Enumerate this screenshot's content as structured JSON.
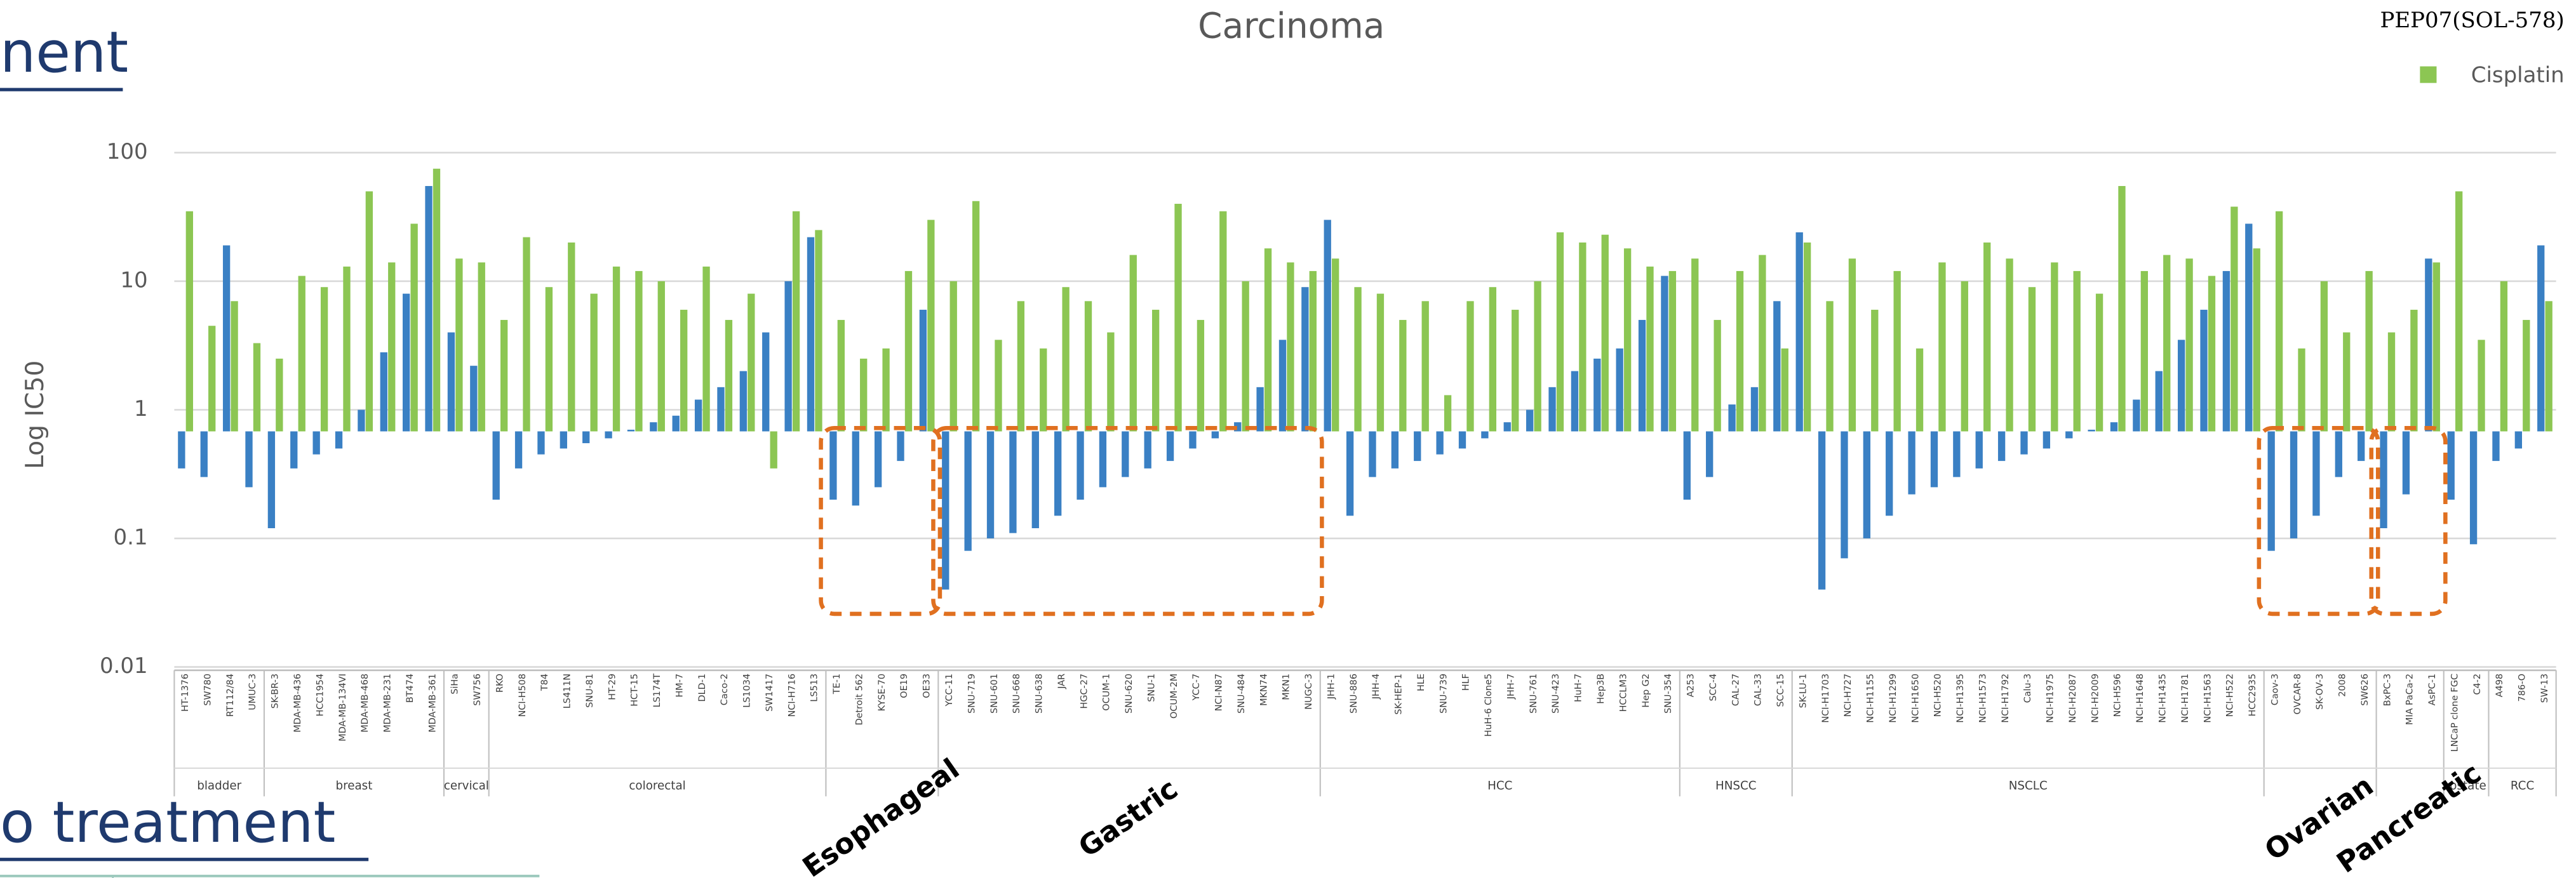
{
  "page_fragments": [
    "nent",
    "o treatment"
  ],
  "chart_data": {
    "type": "bar",
    "title": "Carcinoma",
    "y_label": "Log IC50",
    "log_y": true,
    "grid": true,
    "legend": "top-right",
    "ylim": [
      0.01,
      100
    ],
    "yticks": [
      100,
      10,
      1,
      0.1,
      0.01
    ],
    "categories": [
      "HT-1376",
      "SW780",
      "RT112/84",
      "UMUC-3",
      "SK-BR-3",
      "MDA-MB-436",
      "HCC1954",
      "MDA-MB-134VI",
      "MDA-MB-468",
      "MDA-MB-231",
      "BT474",
      "MDA-MB-361",
      "SiHa",
      "SW756",
      "RKO",
      "NCI-H508",
      "T84",
      "LS411N",
      "SNU-81",
      "HT-29",
      "HCT-15",
      "LS174T",
      "HM-7",
      "DLD-1",
      "Caco-2",
      "LS1034",
      "SW1417",
      "NCI-H716",
      "LS513",
      "TE-1",
      "Detroit 562",
      "KYSE-70",
      "OE19",
      "OE33",
      "YCC-11",
      "SNU-719",
      "SNU-601",
      "SNU-668",
      "SNU-638",
      "JAR",
      "HGC-27",
      "OCUM-1",
      "SNU-620",
      "SNU-1",
      "OCUM-2M",
      "YCC-7",
      "NCI-N87",
      "SNU-484",
      "MKN74",
      "MKN1",
      "NUGC-3",
      "JHH-1",
      "SNU-886",
      "JHH-4",
      "SK-HEP-1",
      "HLE",
      "SNU-739",
      "HLF",
      "HuH-6 Clone5",
      "JHH-7",
      "SNU-761",
      "SNU-423",
      "HuH-7",
      "Hep3B",
      "HCCLM3",
      "Hep G2",
      "SNU-354",
      "A253",
      "SCC-4",
      "CAL-27",
      "CAL-33",
      "SCC-15",
      "SK-LU-1",
      "NCI-H1703",
      "NCI-H727",
      "NCI-H1155",
      "NCI-H1299",
      "NCI-H1650",
      "NCI-H520",
      "NCI-H1395",
      "NCI-H1573",
      "NCI-H1792",
      "Calu-3",
      "NCI-H1975",
      "NCI-H2087",
      "NCI-H2009",
      "NCI-H596",
      "NCI-H1648",
      "NCI-H1435",
      "NCI-H1781",
      "NCI-H1563",
      "NCI-H522",
      "HCC2935",
      "Caov-3",
      "OVCAR-8",
      "SK-OV-3",
      "2008",
      "SW626",
      "BxPC-3",
      "MIA PaCa-2",
      "AsPC-1",
      "LNCaP clone FGC",
      "C4-2",
      "A498",
      "786-O",
      "SW-13"
    ],
    "groups": [
      {
        "label": "bladder",
        "count": 4
      },
      {
        "label": "breast",
        "count": 8
      },
      {
        "label": "cervical",
        "count": 2
      },
      {
        "label": "colorectal",
        "count": 15
      },
      {
        "label": null,
        "count": 5
      },
      {
        "label": null,
        "count": 17
      },
      {
        "label": "HCC",
        "count": 16
      },
      {
        "label": "HNSCC",
        "count": 5
      },
      {
        "label": "NSCLC",
        "count": 21
      },
      {
        "label": null,
        "count": 5
      },
      {
        "label": null,
        "count": 3
      },
      {
        "label": ".ostate",
        "count": 2
      },
      {
        "label": "RCC",
        "count": 3
      }
    ],
    "annotations": [
      {
        "text": "Esophageal",
        "group": 4
      },
      {
        "text": "Gastric",
        "group": 5
      },
      {
        "text": "Ovarian",
        "group": 9
      },
      {
        "text": "Pancreatic",
        "group": 10
      }
    ],
    "series": [
      {
        "name": "PEP07(SOL-578)",
        "color": "#3a80c4",
        "values": [
          0.35,
          0.3,
          19,
          0.25,
          0.12,
          0.35,
          0.45,
          0.5,
          1,
          2.8,
          8,
          55,
          4,
          2.2,
          0.2,
          0.35,
          0.45,
          0.5,
          0.55,
          0.6,
          0.7,
          0.8,
          0.9,
          1.2,
          1.5,
          2,
          4,
          10,
          22,
          0.2,
          0.18,
          0.25,
          0.4,
          6,
          0.04,
          0.08,
          0.1,
          0.11,
          0.12,
          0.15,
          0.2,
          0.25,
          0.3,
          0.35,
          0.4,
          0.5,
          0.6,
          0.8,
          1.5,
          3.5,
          9,
          30,
          0.15,
          0.3,
          0.35,
          0.4,
          0.45,
          0.5,
          0.6,
          0.8,
          1,
          1.5,
          2,
          2.5,
          3,
          5,
          11,
          0.2,
          0.3,
          1.1,
          1.5,
          7,
          24,
          0.04,
          0.07,
          0.1,
          0.15,
          0.22,
          0.25,
          0.3,
          0.35,
          0.4,
          0.45,
          0.5,
          0.6,
          0.7,
          0.8,
          1.2,
          2,
          3.5,
          6,
          12,
          28,
          0.08,
          0.1,
          0.15,
          0.3,
          0.4,
          0.12,
          0.22,
          15,
          0.2,
          0.09,
          0.4,
          0.5,
          19
        ]
      },
      {
        "name": "Cisplatin",
        "color": "#8cc653",
        "values": [
          35,
          4.5,
          7,
          3.3,
          2.5,
          11,
          9,
          13,
          50,
          14,
          28,
          75,
          15,
          14,
          5,
          22,
          9,
          20,
          8,
          13,
          12,
          10,
          6,
          13,
          5,
          8,
          0.35,
          35,
          25,
          5,
          2.5,
          3,
          12,
          30,
          10,
          42,
          3.5,
          7,
          3,
          9,
          7,
          4,
          16,
          6,
          40,
          5,
          35,
          10,
          18,
          14,
          12,
          15,
          9,
          8,
          5,
          7,
          1.3,
          7,
          9,
          6,
          10,
          24,
          20,
          23,
          18,
          13,
          12,
          15,
          5,
          12,
          16,
          3,
          20,
          7,
          15,
          6,
          12,
          3,
          14,
          10,
          20,
          15,
          9,
          14,
          12,
          8,
          55,
          12,
          16,
          15,
          11,
          38,
          18,
          35,
          3,
          10,
          4,
          12,
          4,
          6,
          14,
          50,
          3.5,
          10,
          5,
          7
        ]
      }
    ]
  }
}
